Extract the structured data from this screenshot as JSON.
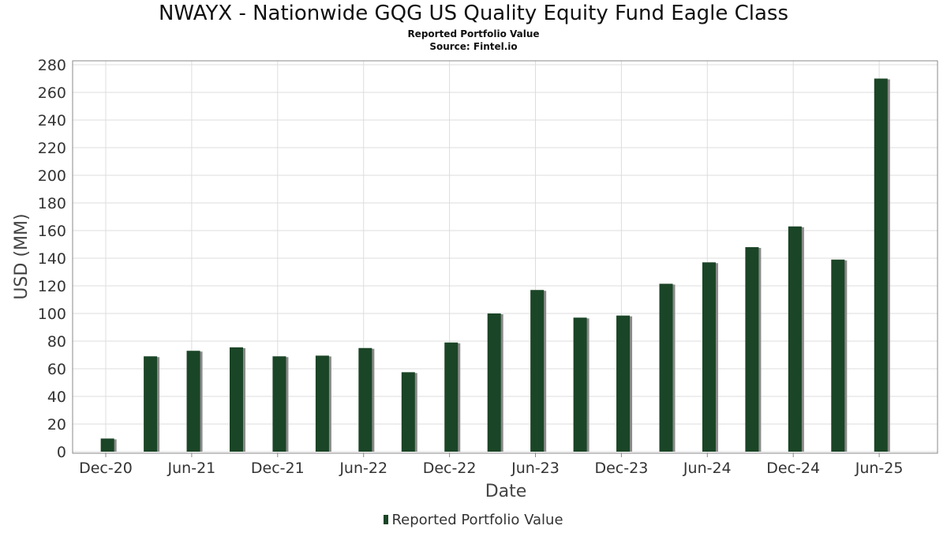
{
  "title": "NWAYX - Nationwide GQG US Quality Equity Fund Eagle Class",
  "subtitle": "Reported Portfolio Value",
  "source": "Source: Fintel.io",
  "legend_label": "Reported Portfolio Value",
  "colors": {
    "bar": "#1a4526",
    "shadow": "#8a8a8a",
    "grid": "#dddddd",
    "axis": "#888888"
  },
  "chart_data": {
    "type": "bar",
    "xlabel": "Date",
    "ylabel": "USD (MM)",
    "ylim": [
      0,
      280
    ],
    "yticks": [
      0,
      20,
      40,
      60,
      80,
      100,
      120,
      140,
      160,
      180,
      200,
      220,
      240,
      260,
      280
    ],
    "xtick_labels": [
      "Dec-20",
      "Jun-21",
      "Dec-21",
      "Jun-22",
      "Dec-22",
      "Jun-23",
      "Dec-23",
      "Jun-24",
      "Dec-24",
      "Jun-25"
    ],
    "grid": true,
    "legend_position": "bottom",
    "series": [
      {
        "name": "Reported Portfolio Value",
        "categories": [
          "Jan-21",
          "Apr-21",
          "Jul-21",
          "Oct-21",
          "Jan-22",
          "Apr-22",
          "Jul-22",
          "Oct-22",
          "Jan-23",
          "Apr-23",
          "Jul-23",
          "Oct-23",
          "Jan-24",
          "Apr-24",
          "Jul-24",
          "Oct-24",
          "Jan-25",
          "Apr-25",
          "Jul-25"
        ],
        "values": [
          9.5,
          69,
          73,
          75.5,
          69,
          69.5,
          75,
          57.5,
          79,
          100,
          117,
          97,
          98.5,
          121.5,
          137,
          148,
          163,
          139,
          270
        ]
      }
    ]
  }
}
